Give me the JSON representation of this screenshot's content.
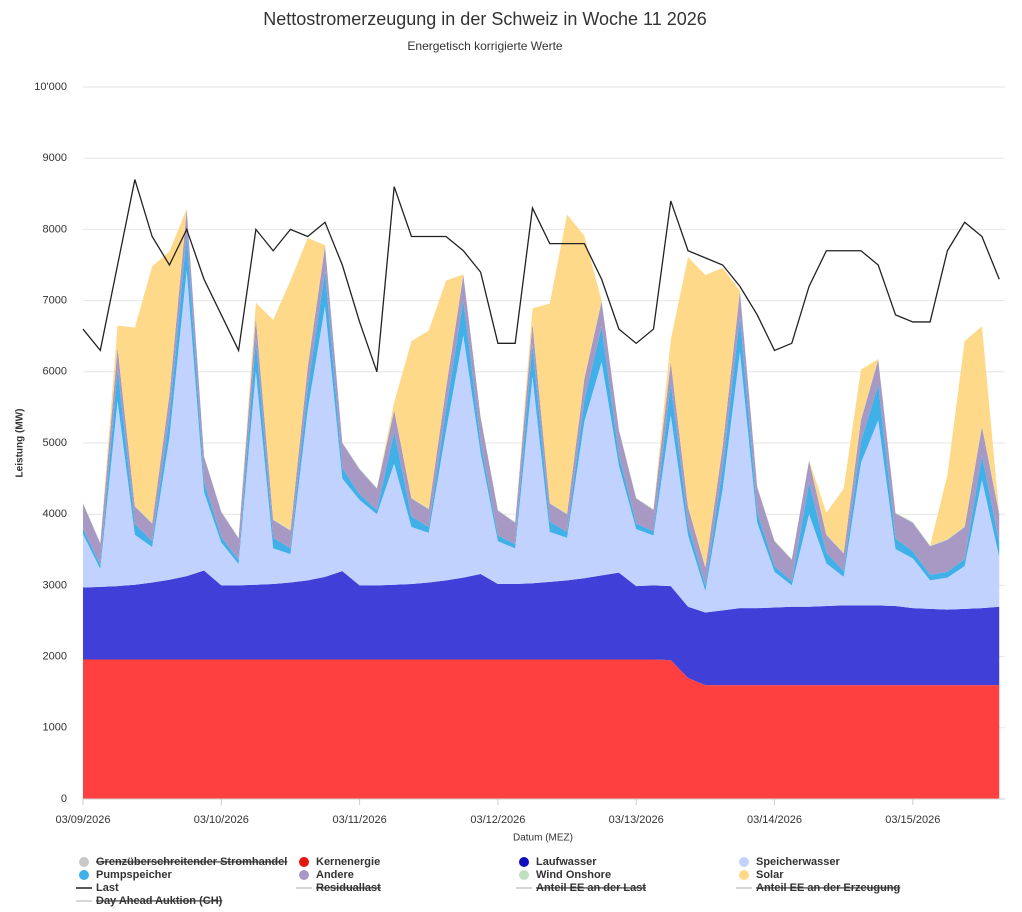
{
  "chart_data": {
    "type": "stacked_area",
    "title": "Nettostromerzeugung in der Schweiz in Woche 11 2026",
    "subtitle": "Energetisch korrigierte Werte",
    "y_label": "Leistung (MW)",
    "x_label": "Datum (MEZ)",
    "x": [
      0,
      3,
      6,
      9,
      12,
      15,
      18,
      21,
      24,
      27,
      30,
      33,
      36,
      39,
      42,
      45,
      48,
      51,
      54,
      57,
      60,
      63,
      66,
      69,
      72,
      75,
      78,
      81,
      84,
      87,
      90,
      93,
      96,
      99,
      102,
      105,
      108,
      111,
      114,
      117,
      120,
      123,
      126,
      129,
      132,
      135,
      138,
      141,
      144,
      147,
      150,
      153,
      156,
      159
    ],
    "xlim": [
      0,
      160
    ],
    "xticks": [
      {
        "value": 0,
        "label": "03/09/2026"
      },
      {
        "value": 24,
        "label": "03/10/2026"
      },
      {
        "value": 48,
        "label": "03/11/2026"
      },
      {
        "value": 72,
        "label": "03/12/2026"
      },
      {
        "value": 96,
        "label": "03/13/2026"
      },
      {
        "value": 120,
        "label": "03/14/2026"
      },
      {
        "value": 144,
        "label": "03/15/2026"
      }
    ],
    "ylim": [
      0,
      10000
    ],
    "yticks": [
      0,
      1000,
      2000,
      3000,
      4000,
      5000,
      6000,
      7000,
      8000,
      9000,
      {
        "value": 10000,
        "label": "10'000"
      }
    ],
    "grid": true,
    "series": [
      {
        "name": "Grenzüberschreitender Stromhandel",
        "kind": "area",
        "hidden": true,
        "color": "#c8c8c8"
      },
      {
        "name": "Kernenergie",
        "kind": "area",
        "color": "#ff4040",
        "values": [
          1960,
          1960,
          1960,
          1960,
          1960,
          1960,
          1960,
          1960,
          1960,
          1960,
          1960,
          1960,
          1960,
          1960,
          1960,
          1960,
          1960,
          1960,
          1960,
          1960,
          1960,
          1960,
          1960,
          1960,
          1960,
          1960,
          1960,
          1960,
          1960,
          1960,
          1960,
          1960,
          1960,
          1960,
          1950,
          1700,
          1600,
          1600,
          1600,
          1600,
          1600,
          1600,
          1600,
          1600,
          1600,
          1600,
          1600,
          1600,
          1600,
          1600,
          1600,
          1600,
          1600,
          1600
        ]
      },
      {
        "name": "Laufwasser",
        "kind": "area",
        "color": "#4040d8",
        "values": [
          1010,
          1020,
          1030,
          1050,
          1080,
          1120,
          1170,
          1250,
          1040,
          1040,
          1050,
          1060,
          1080,
          1110,
          1160,
          1240,
          1040,
          1040,
          1050,
          1060,
          1080,
          1110,
          1150,
          1200,
          1060,
          1060,
          1070,
          1090,
          1110,
          1140,
          1180,
          1220,
          1030,
          1040,
          1040,
          1000,
          1020,
          1050,
          1080,
          1080,
          1090,
          1100,
          1100,
          1110,
          1120,
          1120,
          1120,
          1110,
          1080,
          1070,
          1060,
          1070,
          1080,
          1100
        ]
      },
      {
        "name": "Speicherwasser",
        "kind": "area",
        "color": "#c2d2ff",
        "values": [
          750,
          250,
          2600,
          700,
          500,
          2000,
          4300,
          1100,
          600,
          300,
          3000,
          500,
          400,
          2400,
          3800,
          1300,
          1200,
          1000,
          1700,
          800,
          700,
          2100,
          3400,
          1700,
          600,
          500,
          2900,
          700,
          600,
          2200,
          3000,
          1500,
          800,
          700,
          2400,
          1000,
          300,
          1700,
          3600,
          1200,
          500,
          300,
          1300,
          600,
          400,
          2000,
          2600,
          800,
          700,
          400,
          450,
          600,
          1800,
          700
        ]
      },
      {
        "name": "Pumpspeicher",
        "kind": "area",
        "color": "#40b0e8",
        "values": [
          80,
          60,
          450,
          150,
          80,
          300,
          500,
          150,
          80,
          60,
          450,
          150,
          80,
          300,
          500,
          150,
          80,
          60,
          450,
          150,
          80,
          300,
          500,
          150,
          80,
          60,
          450,
          150,
          80,
          300,
          500,
          150,
          80,
          60,
          450,
          150,
          80,
          300,
          500,
          150,
          80,
          60,
          450,
          150,
          80,
          300,
          500,
          150,
          100,
          80,
          80,
          100,
          350,
          200
        ]
      },
      {
        "name": "Andere",
        "kind": "area",
        "color": "#a898c4",
        "values": [
          350,
          300,
          300,
          250,
          250,
          300,
          350,
          350,
          350,
          300,
          300,
          250,
          250,
          300,
          350,
          350,
          350,
          300,
          300,
          250,
          250,
          300,
          350,
          350,
          350,
          300,
          300,
          250,
          250,
          300,
          350,
          350,
          350,
          300,
          300,
          250,
          250,
          300,
          350,
          350,
          350,
          300,
          300,
          250,
          250,
          300,
          350,
          350,
          400,
          400,
          450,
          450,
          400,
          400
        ]
      },
      {
        "name": "Wind Onshore",
        "kind": "area",
        "color": "#bfe0bf",
        "values": [
          10,
          10,
          10,
          10,
          10,
          10,
          10,
          10,
          10,
          10,
          10,
          10,
          10,
          10,
          10,
          10,
          10,
          10,
          10,
          10,
          10,
          10,
          10,
          10,
          10,
          10,
          10,
          10,
          10,
          10,
          10,
          10,
          10,
          10,
          10,
          10,
          10,
          10,
          10,
          10,
          10,
          10,
          10,
          10,
          10,
          10,
          10,
          10,
          10,
          10,
          10,
          10,
          10,
          10
        ]
      },
      {
        "name": "Solar",
        "kind": "area",
        "color": "#ffd98a",
        "values": [
          0,
          0,
          300,
          2500,
          3600,
          2000,
          0,
          0,
          0,
          0,
          200,
          2800,
          3500,
          1800,
          0,
          0,
          0,
          0,
          100,
          2200,
          2500,
          1500,
          0,
          0,
          0,
          0,
          200,
          2800,
          4200,
          2000,
          0,
          0,
          0,
          0,
          300,
          3500,
          4100,
          2500,
          0,
          0,
          0,
          0,
          0,
          300,
          900,
          700,
          0,
          0,
          0,
          0,
          900,
          2600,
          1400,
          0
        ]
      },
      {
        "name": "Last",
        "kind": "line",
        "color": "#222222",
        "values": [
          6600,
          6300,
          7500,
          8700,
          7900,
          7500,
          8000,
          7300,
          6800,
          6300,
          8000,
          7700,
          8000,
          7900,
          8100,
          7500,
          6700,
          6000,
          8600,
          7900,
          7900,
          7900,
          7700,
          7400,
          6400,
          6400,
          8300,
          7800,
          7800,
          7800,
          7300,
          6600,
          6400,
          6600,
          8400,
          7700,
          7600,
          7500,
          7200,
          6800,
          6300,
          6400,
          7200,
          7700,
          7700,
          7700,
          7500,
          6800,
          6700,
          6700,
          7700,
          8100,
          7900,
          7300
        ]
      },
      {
        "name": "Residuallast",
        "kind": "line",
        "hidden": true,
        "color": "#c8c8c8"
      },
      {
        "name": "Anteil EE an der Last",
        "kind": "line",
        "hidden": true,
        "color": "#c8c8c8"
      },
      {
        "name": "Anteil EE an der Erzeugung",
        "kind": "line",
        "hidden": true,
        "color": "#c8c8c8"
      },
      {
        "name": "Day Ahead Auktion (CH)",
        "kind": "line",
        "hidden": true,
        "color": "#c8c8c8"
      }
    ]
  }
}
